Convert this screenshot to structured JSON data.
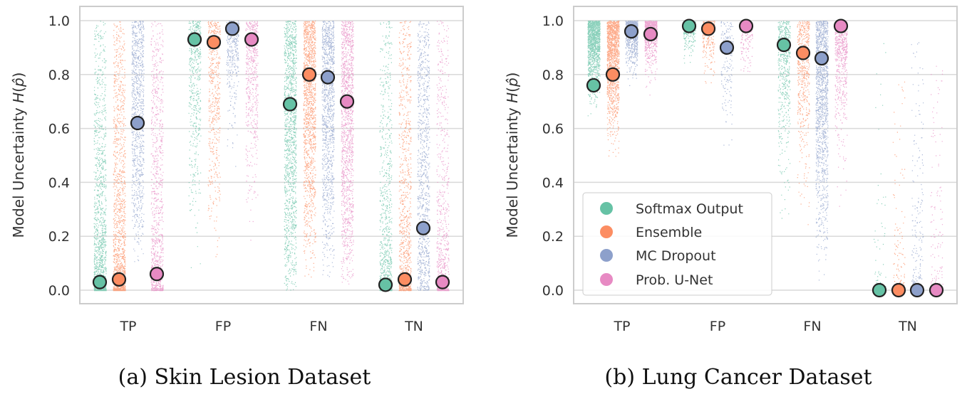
{
  "legend": {
    "entries": [
      "Softmax Output",
      "Ensemble",
      "MC Dropout",
      "Prob. U-Net"
    ],
    "location": "lower-left of panel (b)"
  },
  "colors": {
    "Softmax Output": "#66c2a5",
    "Ensemble": "#fc8d62",
    "MC Dropout": "#8da0cb",
    "Prob. U-Net": "#e78ac3",
    "grid": "#d9d9d9",
    "frame": "#cccccc"
  },
  "chart_data": [
    {
      "type": "scatter",
      "subtype": "strip plot with mean markers",
      "caption": "(a) Skin Lesion Dataset",
      "ylabel": "Model Uncertainty H(p̂)",
      "ylim": [
        0.0,
        1.0
      ],
      "yticks": [
        "0.0",
        "0.2",
        "0.4",
        "0.6",
        "0.8",
        "1.0"
      ],
      "categories": [
        "TP",
        "FP",
        "FN",
        "TN"
      ],
      "grid": true,
      "series": [
        {
          "name": "Softmax Output",
          "values": [
            0.03,
            0.93,
            0.69,
            0.02
          ],
          "ranges": [
            [
              0.0,
              1.0
            ],
            [
              0.02,
              1.0
            ],
            [
              0.0,
              1.0
            ],
            [
              0.0,
              1.0
            ]
          ]
        },
        {
          "name": "Ensemble",
          "values": [
            0.04,
            0.92,
            0.8,
            0.04
          ],
          "ranges": [
            [
              0.0,
              1.0
            ],
            [
              0.05,
              1.0
            ],
            [
              0.03,
              1.0
            ],
            [
              0.0,
              1.0
            ]
          ]
        },
        {
          "name": "MC Dropout",
          "values": [
            0.62,
            0.97,
            0.79,
            0.23
          ],
          "ranges": [
            [
              0.1,
              1.0
            ],
            [
              0.3,
              1.0
            ],
            [
              0.05,
              1.0
            ],
            [
              0.0,
              1.0
            ]
          ]
        },
        {
          "name": "Prob. U-Net",
          "values": [
            0.06,
            0.93,
            0.7,
            0.03
          ],
          "ranges": [
            [
              0.0,
              1.0
            ],
            [
              0.1,
              1.0
            ],
            [
              0.02,
              1.0
            ],
            [
              0.0,
              1.0
            ]
          ]
        }
      ]
    },
    {
      "type": "scatter",
      "subtype": "strip plot with mean markers",
      "caption": "(b) Lung Cancer Dataset",
      "ylabel": "Model Uncertainty H(p̂)",
      "ylim": [
        0.0,
        1.0
      ],
      "yticks": [
        "0.0",
        "0.2",
        "0.4",
        "0.6",
        "0.8",
        "1.0"
      ],
      "categories": [
        "TP",
        "FP",
        "FN",
        "TN"
      ],
      "grid": true,
      "series": [
        {
          "name": "Softmax Output",
          "values": [
            0.76,
            0.98,
            0.91,
            0.0
          ],
          "ranges": [
            [
              0.57,
              1.0
            ],
            [
              0.74,
              1.0
            ],
            [
              0.05,
              1.0
            ],
            [
              0.0,
              0.94
            ]
          ]
        },
        {
          "name": "Ensemble",
          "values": [
            0.8,
            0.97,
            0.88,
            0.0
          ],
          "ranges": [
            [
              0.46,
              1.0
            ],
            [
              0.53,
              1.0
            ],
            [
              0.06,
              1.0
            ],
            [
              0.0,
              0.82
            ]
          ]
        },
        {
          "name": "MC Dropout",
          "values": [
            0.96,
            0.9,
            0.86,
            0.0
          ],
          "ranges": [
            [
              0.59,
              1.0
            ],
            [
              0.35,
              1.0
            ],
            [
              0.0,
              1.0
            ],
            [
              0.0,
              0.92
            ]
          ]
        },
        {
          "name": "Prob. U-Net",
          "values": [
            0.95,
            0.98,
            0.98,
            0.0
          ],
          "ranges": [
            [
              0.63,
              1.0
            ],
            [
              0.66,
              1.0
            ],
            [
              0.1,
              1.0
            ],
            [
              0.0,
              0.86
            ]
          ]
        }
      ]
    }
  ]
}
